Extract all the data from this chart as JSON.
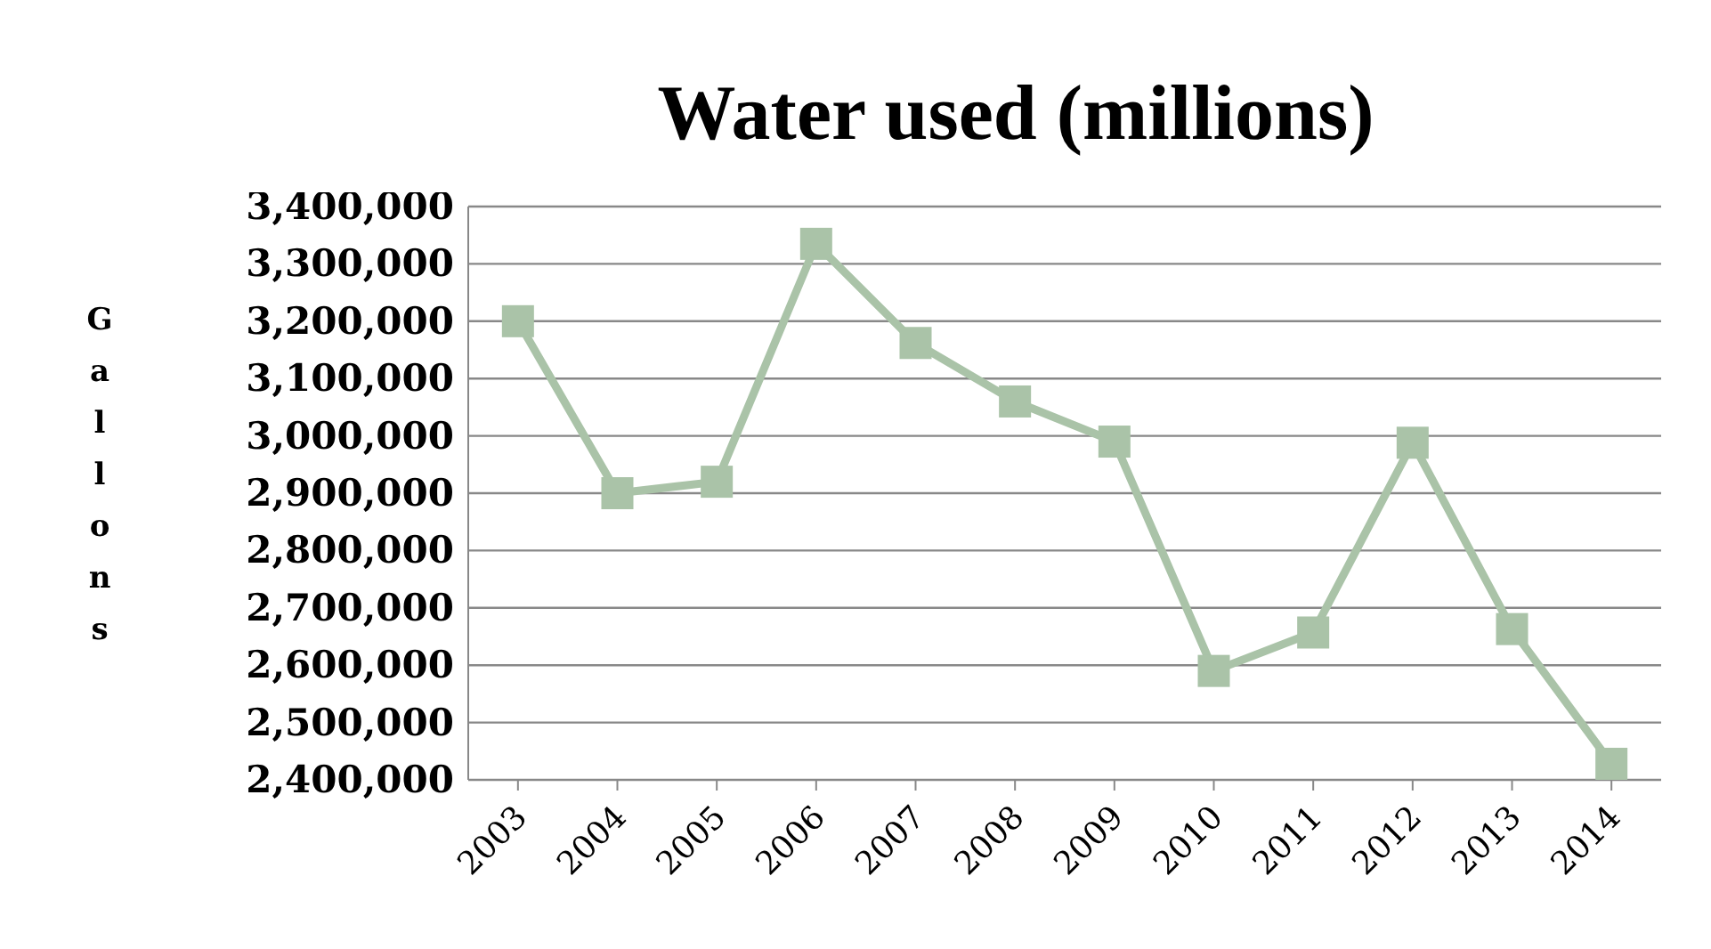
{
  "chart_data": {
    "type": "line",
    "title": "Water used (millions)",
    "ylabel": "Gallons",
    "categories": [
      "2003",
      "2004",
      "2005",
      "2006",
      "2007",
      "2008",
      "2009",
      "2010",
      "2011",
      "2012",
      "2013",
      "2014"
    ],
    "series": [
      {
        "color": "#aac3a8",
        "values": [
          3200000,
          2900000,
          2920000,
          3335000,
          3162000,
          3060000,
          2990000,
          2590000,
          2657000,
          2988000,
          2663000,
          2428000
        ]
      }
    ],
    "ylim": [
      2400000,
      3400000
    ],
    "yticks": [
      {
        "value": 2400000,
        "label": "2,400,000"
      },
      {
        "value": 2500000,
        "label": "2,500,000"
      },
      {
        "value": 2600000,
        "label": "2,600,000"
      },
      {
        "value": 2700000,
        "label": "2,700,000"
      },
      {
        "value": 2800000,
        "label": "2,800,000"
      },
      {
        "value": 2900000,
        "label": "2,900,000"
      },
      {
        "value": 3000000,
        "label": "3,000,000"
      },
      {
        "value": 3100000,
        "label": "3,100,000"
      },
      {
        "value": 3200000,
        "label": "3,200,000"
      },
      {
        "value": 3300000,
        "label": "3,300,000"
      },
      {
        "value": 3400000,
        "label": "3,400,000"
      }
    ],
    "grid": "y",
    "marker": "square",
    "line_style": "solid",
    "legend": false
  }
}
